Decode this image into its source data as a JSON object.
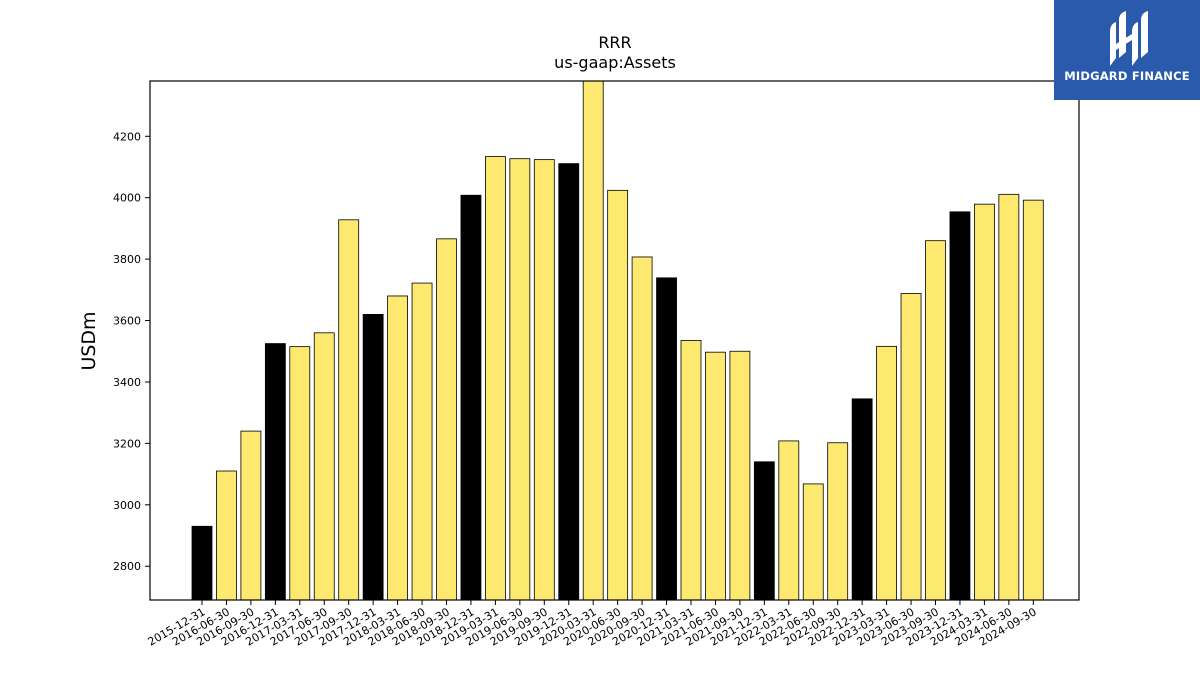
{
  "chart_data": {
    "type": "bar",
    "title": "RRR",
    "subtitle": "us-gaap:Assets",
    "xlabel": "",
    "ylabel": "USDm",
    "ylim": [
      2690,
      4380
    ],
    "yticks": [
      2800,
      3000,
      3200,
      3400,
      3600,
      3800,
      4000,
      4200
    ],
    "categories": [
      "2015-12-31",
      "2016-06-30",
      "2016-09-30",
      "2016-12-31",
      "2017-03-31",
      "2017-06-30",
      "2017-09-30",
      "2017-12-31",
      "2018-03-31",
      "2018-06-30",
      "2018-09-30",
      "2018-12-31",
      "2019-03-31",
      "2019-06-30",
      "2019-09-30",
      "2019-12-31",
      "2020-03-31",
      "2020-06-30",
      "2020-09-30",
      "2020-12-31",
      "2021-03-31",
      "2021-06-30",
      "2021-09-30",
      "2021-12-31",
      "2022-03-31",
      "2022-06-30",
      "2022-09-30",
      "2022-12-31",
      "2023-03-31",
      "2023-06-30",
      "2023-09-30",
      "2023-12-31",
      "2024-03-31",
      "2024-06-30",
      "2024-09-30"
    ],
    "values": [
      2930,
      3110,
      3240,
      3525,
      3515,
      3560,
      3928,
      3620,
      3680,
      3722,
      3866,
      4008,
      4134,
      4127,
      4124,
      4111,
      4380,
      4024,
      3807,
      3739,
      3535,
      3497,
      3500,
      3140,
      3208,
      3068,
      3202,
      3345,
      3516,
      3688,
      3860,
      3954,
      3979,
      4011,
      3992
    ],
    "year_end_flags": [
      1,
      0,
      0,
      1,
      0,
      0,
      0,
      1,
      0,
      0,
      0,
      1,
      0,
      0,
      0,
      1,
      0,
      0,
      0,
      1,
      0,
      0,
      0,
      1,
      0,
      0,
      0,
      1,
      0,
      0,
      0,
      1,
      0,
      0,
      0
    ],
    "colors": {
      "year_end": "#000000",
      "quarter": "#fde96f",
      "edge": "#000000"
    },
    "grid": false,
    "legend": "none"
  },
  "branding": {
    "logo_text": "MIDGARD FINANCE",
    "background": "#2a5aab"
  }
}
